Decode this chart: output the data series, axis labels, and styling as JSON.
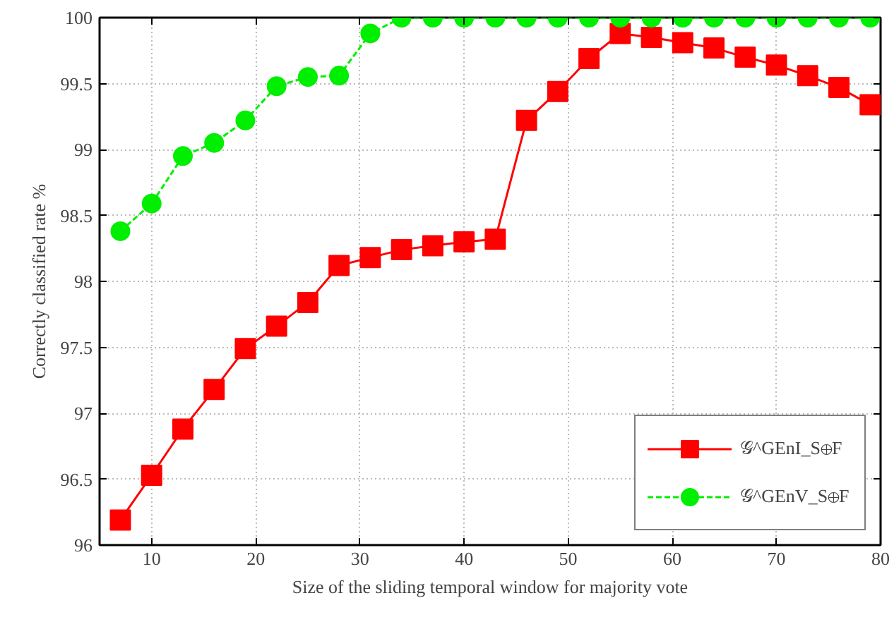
{
  "chart_data": {
    "type": "line",
    "xlabel": "Size of the sliding temporal window for majority vote",
    "ylabel": "Correctly classified rate %",
    "x": [
      7,
      10,
      13,
      16,
      19,
      22,
      25,
      28,
      31,
      34,
      37,
      40,
      43,
      46,
      49,
      52,
      55,
      58,
      61,
      64,
      67,
      70,
      73,
      76,
      79
    ],
    "series": [
      {
        "name": "𝒢^GEnI_S⊕F",
        "color": "#ff0000",
        "marker": "square",
        "line_style": "solid",
        "values": [
          96.19,
          96.53,
          96.88,
          97.18,
          97.49,
          97.66,
          97.84,
          98.12,
          98.18,
          98.24,
          98.27,
          98.3,
          98.32,
          99.22,
          99.44,
          99.69,
          99.88,
          99.85,
          99.81,
          99.77,
          99.7,
          99.64,
          99.56,
          99.47,
          99.34
        ]
      },
      {
        "name": "𝒢^GEnV_S⊕F",
        "color": "#00ee00",
        "marker": "circle",
        "line_style": "dashed",
        "values": [
          98.38,
          98.59,
          98.95,
          99.05,
          99.22,
          99.48,
          99.55,
          99.56,
          99.88,
          100,
          100,
          100,
          100,
          100,
          100,
          100,
          100,
          100,
          100,
          100,
          100,
          100,
          100,
          100,
          100
        ]
      }
    ],
    "xlim": [
      5,
      80
    ],
    "ylim": [
      96,
      100
    ],
    "xticks": [
      10,
      20,
      30,
      40,
      50,
      60,
      70,
      80
    ],
    "yticks": [
      96,
      96.5,
      97,
      97.5,
      98,
      98.5,
      99,
      99.5,
      100
    ],
    "grid": true,
    "legend": "bottom right"
  }
}
